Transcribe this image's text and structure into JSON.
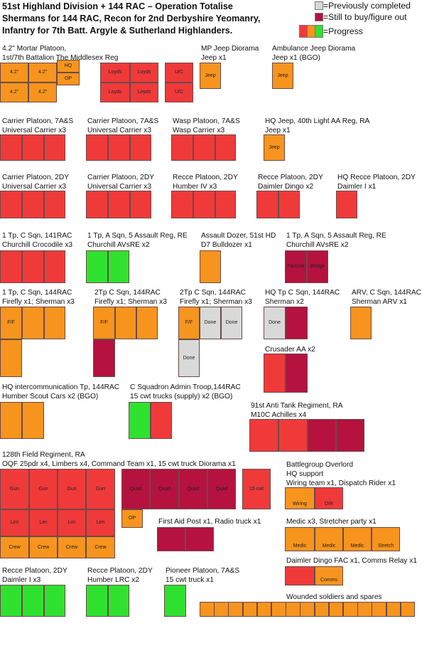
{
  "colors": {
    "red": "#f03a3a",
    "orange": "#f7941d",
    "green": "#2fe22f",
    "grey": "#d9d9d9",
    "maroon": "#b5123f"
  },
  "header": {
    "line1": "51st Highland Division + 144 RAC – Operation Totalise",
    "line2": "Shermans for 144 RAC, Recon for 2nd Derbyshire Yeomanry,",
    "line3": "Infantry for 7th Batt. Argyle & Sutherland Highlanders."
  },
  "legend": {
    "completed": "=Previously completed",
    "to_buy": "=Still to buy/figure out",
    "progress": "=Progress"
  },
  "units": {
    "mortar": {
      "l1": "4.2\" Mortar Platoon,",
      "l2": "1st/7th Battalion The Middlesex Reg"
    },
    "mp_jeep": {
      "l1": "MP Jeep Diorama",
      "l2": "Jeep x1"
    },
    "amb_jeep": {
      "l1": "Ambulance Jeep Diorama",
      "l2": "Jeep x1 (BGO)"
    },
    "carrier_7as_a": {
      "l1": "Carrier Platoon, 7A&S",
      "l2": "Universal Carrier x3"
    },
    "carrier_7as_b": {
      "l1": "Carrier Platoon, 7A&S",
      "l2": "Universal Carrier x3"
    },
    "wasp": {
      "l1": "Wasp Platoon, 7A&S",
      "l2": "Wasp Carrier x3"
    },
    "hq_jeep_40": {
      "l1": "HQ Jeep, 40th Light AA Reg, RA",
      "l2": "Jeep x1"
    },
    "carrier_2dy_a": {
      "l1": "Carrier Platoon, 2DY",
      "l2": "Universal Carrier x3"
    },
    "carrier_2dy_b": {
      "l1": "Carrier Platoon, 2DY",
      "l2": "Universal Carrier x3"
    },
    "recce_humber4": {
      "l1": "Recce Platoon, 2DY",
      "l2": "Humber IV x3"
    },
    "recce_dingo": {
      "l1": "Recce Platoon, 2DY",
      "l2": "Daimler Dingo x2"
    },
    "hq_recce": {
      "l1": "HQ Recce Platoon, 2DY",
      "l2": "Daimler I x1"
    },
    "crocodile": {
      "l1": "1 Tp, C Sqn, 141RAC",
      "l2": "Churchill Crocodile x3"
    },
    "avre_a": {
      "l1": "1 Tp, A Sqn, 5 Assault Reg, RE",
      "l2": "Churchill AVsRE x2"
    },
    "dozer": {
      "l1": "Assault Dozer, 51st HD",
      "l2": "D7 Bulldozer x1"
    },
    "avre_b": {
      "l1": "1 Tp, A Sqn, 5 Assault Reg, RE",
      "l2": "Churchill AVsRE x2"
    },
    "tp1_144": {
      "l1": "1 Tp, C Sqn, 144RAC",
      "l2": "Firefly x1; Sherman x3"
    },
    "tp2_144_a": {
      "l1": "2Tp C Sqn, 144RAC",
      "l2": "Firefly x1; Sherman x3"
    },
    "tp2_144_b": {
      "l1": "2Tp C Sqn, 144RAC",
      "l2": "Firefly x1; Sherman x3"
    },
    "hq_tp_144": {
      "l1": "HQ Tp C Sqn, 144RAC",
      "l2": "Sherman x2"
    },
    "arv": {
      "l1": "ARV, C Sqn, 144RAC",
      "l2": "Sherman ARV x1"
    },
    "crusader": {
      "l1": "Crusader AA x2"
    },
    "hq_intercom": {
      "l1": "HQ intercommunication Tp, 144RAC",
      "l2": "Humber Scout Cars x2 (BGO)"
    },
    "admin_troop": {
      "l1": "C Squadron Admin Troop,144RAC",
      "l2": "15 cwt trucks (supply) x2 (BGO)"
    },
    "anti_tank": {
      "l1": "91st Anti Tank Regiment, RA",
      "l2": "M10C Achilles x4"
    },
    "field_reg": {
      "l1": "128th Field Regiment, RA",
      "l2": "OQF 25pdr x4, Limbers x4, Command Team x1, 15 cwt truck Diorama x1"
    },
    "overlord": {
      "l1": "Battlegroup Overlord",
      "l2": "HQ support",
      "l3": "Wiring team x1, Dispatch Rider x1"
    },
    "first_aid": {
      "l1": "First Aid Post x1, Radio truck x1"
    },
    "medic": {
      "l1": "Medic x3, Stretcher party x1"
    },
    "dingo_fac": {
      "l1": "Daimler Dingo FAC x1, Comms Relay x1"
    },
    "recce_daimler": {
      "l1": "Recce Platoon, 2DY",
      "l2": "Daimler I  x3"
    },
    "recce_lrc": {
      "l1": "Recce Platoon, 2DY",
      "l2": "Humber LRC  x2"
    },
    "pioneer": {
      "l1": "Pioneer Platoon, 7A&S",
      "l2": "15 cwt truck x1"
    },
    "wounded": {
      "l1": "Wounded soldiers and spares"
    }
  },
  "box_labels": {
    "mortar": "4.2\"",
    "hq": "HQ",
    "op": "OP",
    "loyds": "Loyds",
    "uc": "U/C",
    "jeep": "Jeep",
    "fascine": "Fascine",
    "bridge": "Bridge",
    "ff": "F/F",
    "done": "Done",
    "gun": "Gun",
    "quad": "Quad",
    "cwt15": "15 cwt",
    "lim": "Lim",
    "crew": "Crew",
    "wiring": "Wiring",
    "dr": "D/R",
    "medic": "Medic",
    "stretch": "Stretch",
    "comms": "Comms"
  }
}
